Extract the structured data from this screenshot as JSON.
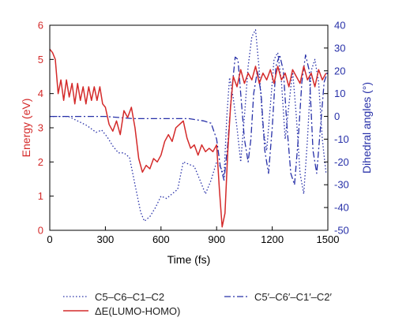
{
  "chart_data": {
    "type": "line",
    "xlabel": "Time (fs)",
    "ylabel_left": "Energy (eV)",
    "ylabel_right": "Dihedral angles (°)",
    "xlim": [
      0,
      1500
    ],
    "ylim_left": [
      0,
      6
    ],
    "ylim_right": [
      -50,
      40
    ],
    "x_ticks": [
      0,
      300,
      600,
      900,
      1200,
      1500
    ],
    "y_left_ticks": [
      0,
      1,
      2,
      3,
      4,
      5,
      6
    ],
    "y_right_ticks": [
      -50,
      -40,
      -30,
      -20,
      -10,
      0,
      10,
      20,
      30,
      40
    ],
    "colors": {
      "energy": "#d42a2a",
      "dihedral": "#2730a8",
      "axis": "#000000"
    },
    "legend_placement": "bottom",
    "series": [
      {
        "key": "dihedral_1",
        "name": "C5–C6–C1–C2",
        "axis": "right",
        "style": "dotted",
        "x": [
          0,
          100,
          150,
          200,
          250,
          280,
          310,
          340,
          370,
          400,
          430,
          460,
          490,
          510,
          540,
          570,
          600,
          630,
          660,
          690,
          720,
          750,
          780,
          810,
          840,
          870,
          900,
          920,
          940,
          955,
          970,
          990,
          1010,
          1030,
          1050,
          1070,
          1090,
          1110,
          1130,
          1150,
          1170,
          1190,
          1210,
          1230,
          1250,
          1270,
          1290,
          1310,
          1330,
          1350,
          1370,
          1390,
          1410,
          1430,
          1450,
          1470,
          1490
        ],
        "y": [
          0,
          0,
          -2,
          -4,
          -7,
          -6,
          -9,
          -13,
          -16,
          -16,
          -18,
          -30,
          -42,
          -46,
          -44,
          -40,
          -35,
          -36,
          -34,
          -32,
          -20,
          -21,
          -22,
          -28,
          -34,
          -28,
          -20,
          -22,
          -26,
          0,
          17,
          8,
          -5,
          -20,
          0,
          22,
          35,
          38,
          20,
          -5,
          -15,
          5,
          25,
          28,
          15,
          -10,
          5,
          20,
          0,
          -25,
          -34,
          -10,
          20,
          25,
          15,
          -10,
          -25
        ]
      },
      {
        "key": "dihedral_2",
        "name": "C5′–C6′–C1′–C2′",
        "axis": "right",
        "style": "dashdot",
        "x": [
          0,
          150,
          300,
          450,
          600,
          750,
          830,
          870,
          900,
          920,
          940,
          960,
          980,
          1000,
          1015,
          1030,
          1050,
          1070,
          1085,
          1100,
          1120,
          1140,
          1160,
          1180,
          1200,
          1220,
          1240,
          1260,
          1280,
          1300,
          1320,
          1340,
          1360,
          1380,
          1400,
          1420,
          1440,
          1460,
          1480,
          1500
        ],
        "y": [
          0,
          0,
          0,
          -1,
          -1,
          -1,
          -2,
          -3,
          -10,
          -22,
          -28,
          -12,
          10,
          26,
          25,
          10,
          -10,
          -20,
          -10,
          10,
          20,
          10,
          -15,
          -25,
          -5,
          22,
          27,
          20,
          -5,
          -25,
          -30,
          -10,
          15,
          27,
          20,
          -15,
          -25,
          -5,
          15,
          20
        ]
      },
      {
        "key": "energy",
        "name": "ΔE(LUMO-HOMO)",
        "axis": "left",
        "style": "solid",
        "x": [
          0,
          15,
          30,
          45,
          60,
          75,
          90,
          105,
          120,
          135,
          150,
          165,
          180,
          195,
          210,
          225,
          240,
          255,
          270,
          285,
          300,
          320,
          340,
          360,
          380,
          400,
          420,
          440,
          460,
          480,
          500,
          520,
          540,
          560,
          580,
          600,
          620,
          640,
          660,
          680,
          700,
          720,
          740,
          760,
          780,
          800,
          820,
          840,
          860,
          880,
          900,
          915,
          930,
          945,
          960,
          975,
          990,
          1010,
          1030,
          1050,
          1070,
          1090,
          1110,
          1130,
          1150,
          1170,
          1190,
          1210,
          1230,
          1250,
          1270,
          1290,
          1310,
          1330,
          1350,
          1370,
          1390,
          1410,
          1430,
          1450,
          1470,
          1490
        ],
        "y": [
          5.3,
          5.2,
          5.0,
          4.0,
          4.4,
          3.8,
          4.4,
          3.9,
          4.3,
          3.7,
          4.3,
          3.8,
          4.2,
          3.7,
          4.2,
          3.8,
          4.2,
          3.8,
          4.2,
          3.7,
          3.6,
          3.1,
          2.9,
          3.2,
          2.8,
          3.5,
          3.3,
          3.6,
          3.0,
          2.1,
          1.7,
          1.9,
          1.8,
          2.1,
          2.0,
          2.2,
          2.6,
          2.8,
          2.6,
          3.0,
          3.1,
          3.2,
          2.7,
          2.4,
          2.5,
          2.2,
          2.5,
          2.3,
          2.4,
          2.3,
          2.5,
          1.2,
          0.1,
          0.5,
          2.3,
          3.6,
          4.5,
          4.2,
          4.7,
          4.3,
          4.6,
          4.4,
          4.8,
          4.3,
          4.6,
          4.4,
          4.7,
          4.3,
          4.8,
          4.4,
          4.6,
          4.2,
          4.7,
          4.5,
          4.3,
          4.8,
          4.4,
          4.6,
          4.2,
          4.7,
          4.4,
          4.6
        ]
      }
    ],
    "legend": [
      {
        "series": "dihedral_1",
        "label": "C5–C6–C1–C2"
      },
      {
        "series": "dihedral_2",
        "label": "C5′–C6′–C1′–C2′"
      },
      {
        "series": "energy",
        "label": "ΔE(LUMO-HOMO)"
      }
    ]
  }
}
